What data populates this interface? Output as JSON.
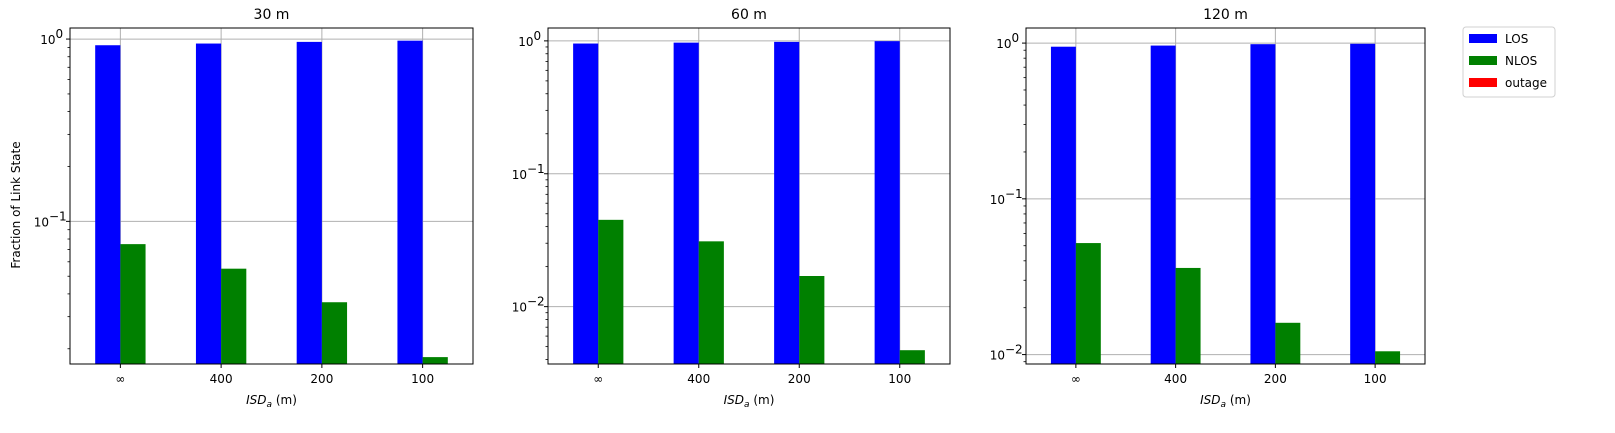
{
  "colors": {
    "LOS": "#0000ff",
    "NLOS": "#008000",
    "outage": "#ff0000",
    "grid": "#b0b0b0"
  },
  "ylabel": "Fraction of Link State",
  "legend": {
    "placement": "outside-right",
    "entries": [
      "LOS",
      "NLOS",
      "outage"
    ]
  },
  "chart_data": [
    {
      "type": "bar",
      "title": "30 m",
      "xlabel_main": "ISD",
      "xlabel_sub": "a",
      "xlabel_unit": "(m)",
      "categories": [
        "∞",
        "400",
        "200",
        "100"
      ],
      "yscale": "log",
      "ylim": [
        0.0165,
        1.15
      ],
      "yticks": [
        {
          "label_base": "10",
          "label_exp": "0",
          "value": 1
        },
        {
          "label_base": "10",
          "label_exp": "−1",
          "value": 0.1
        }
      ],
      "grid": true,
      "series": [
        {
          "name": "LOS",
          "values": [
            0.925,
            0.945,
            0.965,
            0.98
          ]
        },
        {
          "name": "NLOS",
          "values": [
            0.075,
            0.055,
            0.036,
            0.018
          ]
        },
        {
          "name": "outage",
          "values": [
            0,
            0,
            0,
            0
          ]
        }
      ]
    },
    {
      "type": "bar",
      "title": "60 m",
      "xlabel_main": "ISD",
      "xlabel_sub": "a",
      "xlabel_unit": "(m)",
      "categories": [
        "∞",
        "400",
        "200",
        "100"
      ],
      "yscale": "log",
      "ylim": [
        0.0037,
        1.25
      ],
      "yticks": [
        {
          "label_base": "10",
          "label_exp": "0",
          "value": 1
        },
        {
          "label_base": "10",
          "label_exp": "−1",
          "value": 0.1
        },
        {
          "label_base": "10",
          "label_exp": "−2",
          "value": 0.01
        }
      ],
      "grid": true,
      "series": [
        {
          "name": "LOS",
          "values": [
            0.955,
            0.97,
            0.983,
            0.995
          ]
        },
        {
          "name": "NLOS",
          "values": [
            0.045,
            0.031,
            0.017,
            0.0047
          ]
        },
        {
          "name": "outage",
          "values": [
            0,
            0,
            0,
            0
          ]
        }
      ]
    },
    {
      "type": "bar",
      "title": "120 m",
      "xlabel_main": "ISD",
      "xlabel_sub": "a",
      "xlabel_unit": "(m)",
      "categories": [
        "∞",
        "400",
        "200",
        "100"
      ],
      "yscale": "log",
      "ylim": [
        0.0087,
        1.25
      ],
      "yticks": [
        {
          "label_base": "10",
          "label_exp": "0",
          "value": 1
        },
        {
          "label_base": "10",
          "label_exp": "−1",
          "value": 0.1
        },
        {
          "label_base": "10",
          "label_exp": "−2",
          "value": 0.01
        }
      ],
      "grid": true,
      "series": [
        {
          "name": "LOS",
          "values": [
            0.948,
            0.964,
            0.984,
            0.99
          ]
        },
        {
          "name": "NLOS",
          "values": [
            0.052,
            0.036,
            0.016,
            0.0105
          ]
        },
        {
          "name": "outage",
          "values": [
            0,
            0,
            0,
            0
          ]
        }
      ]
    }
  ]
}
